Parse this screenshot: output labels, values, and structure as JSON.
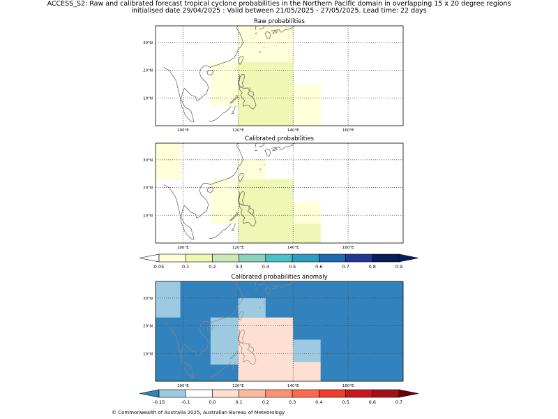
{
  "header": {
    "title_line1": "ACCESS_S2: Raw and calibrated forecast tropical cyclone probabilities in the Northern Pacific domain in overlapping 15 x 20 degree regions",
    "title_line2": "initialised date 29/04/2025 :  Valid between 21/05/2025 - 27/05/2025. Lead time: 22 days"
  },
  "footer": {
    "copyright": "© Commonwealth of Australia 2025, Australian Bureau of Meteorology"
  },
  "chart_data": [
    {
      "type": "heatmap",
      "title": "Raw probabilities",
      "xlim": [
        90,
        180
      ],
      "ylim": [
        0,
        36
      ],
      "xticks": [
        100,
        120,
        140,
        160
      ],
      "xtick_labels": [
        "100°E",
        "120°E",
        "140°E",
        "160°E"
      ],
      "yticks": [
        10,
        20,
        30
      ],
      "ytick_labels": [
        "10°N",
        "20°N",
        "30°N"
      ],
      "grid": true,
      "regions": [
        {
          "lon": [
            120,
            140
          ],
          "lat": [
            23,
            36
          ],
          "value": 0.07
        },
        {
          "lon": [
            110,
            120
          ],
          "lat": [
            7,
            23
          ],
          "value": 0.07
        },
        {
          "lon": [
            140,
            150
          ],
          "lat": [
            0,
            15
          ],
          "value": 0.07
        },
        {
          "lon": [
            120,
            140
          ],
          "lat": [
            0,
            23
          ],
          "value": 0.12
        }
      ]
    },
    {
      "type": "heatmap",
      "title": "Calibrated probabilities",
      "xlim": [
        90,
        180
      ],
      "ylim": [
        0,
        36
      ],
      "xticks": [
        100,
        120,
        140,
        160
      ],
      "xtick_labels": [
        "100°E",
        "120°E",
        "140°E",
        "160°E"
      ],
      "yticks": [
        10,
        20,
        30
      ],
      "ytick_labels": [
        "10°N",
        "20°N",
        "30°N"
      ],
      "grid": true,
      "regions": [
        {
          "lon": [
            90,
            99
          ],
          "lat": [
            23,
            36
          ],
          "value": 0.07
        },
        {
          "lon": [
            120,
            130
          ],
          "lat": [
            23,
            30
          ],
          "value": 0.07
        },
        {
          "lon": [
            110,
            120
          ],
          "lat": [
            7,
            23
          ],
          "value": 0.07
        },
        {
          "lon": [
            140,
            150
          ],
          "lat": [
            7,
            15
          ],
          "value": 0.07
        },
        {
          "lon": [
            120,
            140
          ],
          "lat": [
            0,
            23
          ],
          "value": 0.12
        },
        {
          "lon": [
            140,
            150
          ],
          "lat": [
            0,
            7
          ],
          "value": 0.12
        }
      ]
    },
    {
      "type": "heatmap",
      "title": "Calibrated probabilities anomaly",
      "xlim": [
        90,
        180
      ],
      "ylim": [
        0,
        36
      ],
      "xticks": [
        100,
        120,
        140,
        160
      ],
      "xtick_labels": [
        "100°E",
        "120°E",
        "140°E",
        "160°E"
      ],
      "yticks": [
        10,
        20,
        30
      ],
      "ytick_labels": [
        "10°N",
        "20°N",
        "30°N"
      ],
      "grid": true,
      "background_value": -0.17,
      "regions": [
        {
          "lon": [
            90,
            99
          ],
          "lat": [
            23,
            36
          ],
          "value": -0.12
        },
        {
          "lon": [
            120,
            130
          ],
          "lat": [
            23,
            30
          ],
          "value": -0.12
        },
        {
          "lon": [
            110,
            120
          ],
          "lat": [
            6,
            23
          ],
          "value": -0.12
        },
        {
          "lon": [
            140,
            150
          ],
          "lat": [
            7,
            15
          ],
          "value": -0.12
        },
        {
          "lon": [
            120,
            140
          ],
          "lat": [
            0,
            23
          ],
          "value": 0.0
        },
        {
          "lon": [
            140,
            150
          ],
          "lat": [
            0,
            7
          ],
          "value": 0.0
        }
      ]
    }
  ],
  "colorbars": [
    {
      "name": "probability",
      "labels": [
        "0.05",
        "0.1",
        "0.2",
        "0.3",
        "0.4",
        "0.5",
        "0.6",
        "0.7",
        "0.8",
        "0.9"
      ],
      "colors": [
        "#ffffd9",
        "#eef8b4",
        "#cbe9b4",
        "#88d1bb",
        "#4ebfc2",
        "#2e9ec0",
        "#2069ad",
        "#253696",
        "#081d58"
      ],
      "under_color": "#ffffff",
      "over_color": "#081d58"
    },
    {
      "name": "anomaly",
      "labels": [
        "-0.15",
        "-0.1",
        "0.0",
        "0.1",
        "0.2",
        "0.3",
        "0.4",
        "0.5",
        "0.6",
        "0.7"
      ],
      "colors": [
        "#9ecae1",
        "#ffffff",
        "#fee0d2",
        "#fcbba1",
        "#fc9272",
        "#fb6a4a",
        "#ef3b2c",
        "#cb181d",
        "#a50f15"
      ],
      "under_color": "#3182bd",
      "over_color": "#67000d"
    }
  ]
}
